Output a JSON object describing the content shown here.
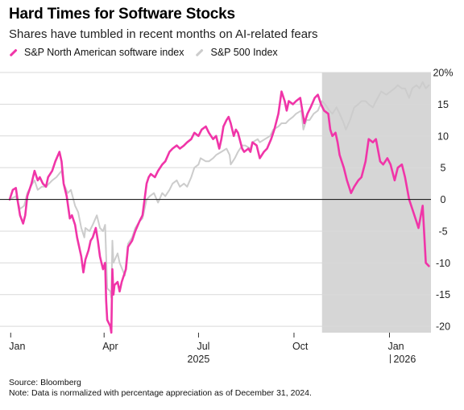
{
  "title": "Hard Times for Software Stocks",
  "subtitle": "Shares have tumbled in recent months on AI-related fears",
  "source": "Source: Bloomberg",
  "note": "Note: Data is normalized with percentage appreciation as of December 31, 2024.",
  "chart_data": {
    "type": "line",
    "title": "Hard Times for Software Stocks",
    "subtitle": "Shares have tumbled in recent months on AI-related fears",
    "x_type": "date",
    "xlim": [
      "2024-12-31",
      "2026-02-10"
    ],
    "ylim": [
      -21,
      20
    ],
    "y_ticks": [
      -20,
      -15,
      -10,
      -5,
      0,
      5,
      10,
      15,
      20
    ],
    "y_tick_labels": [
      "-20",
      "-15",
      "-10",
      "-5",
      "0",
      "5",
      "10",
      "15",
      "20%"
    ],
    "y_axis_position": "right",
    "x_ticks": [
      "2025-01-01",
      "2025-04-01",
      "2025-07-01",
      "2025-10-01",
      "2026-01-01"
    ],
    "x_tick_labels": [
      "Jan",
      "Apr",
      "Jul",
      "Oct",
      "Jan"
    ],
    "x_year_labels": [
      {
        "date": "2025-07-01",
        "label": "2025"
      },
      {
        "date": "2026-01-01",
        "label": "2026"
      }
    ],
    "grid": "horizontal",
    "legend_position": "top-left",
    "shaded_region": {
      "from": "2025-10-28",
      "to": "2026-02-10",
      "color": "#d6d6d6"
    },
    "colors": {
      "software": "#f035a8",
      "sp500": "#cccccc",
      "zero_line": "#222222",
      "grid": "#d9d9d9"
    },
    "series": [
      {
        "name": "S&P North American software index",
        "color": "#f035a8",
        "points": [
          [
            "2024-12-31",
            0
          ],
          [
            "2025-01-03",
            1.5
          ],
          [
            "2025-01-06",
            1.8
          ],
          [
            "2025-01-08",
            -0.5
          ],
          [
            "2025-01-10",
            -2.5
          ],
          [
            "2025-01-13",
            -3.8
          ],
          [
            "2025-01-15",
            -2.5
          ],
          [
            "2025-01-17",
            0.5
          ],
          [
            "2025-01-21",
            2.5
          ],
          [
            "2025-01-24",
            4.5
          ],
          [
            "2025-01-27",
            3.0
          ],
          [
            "2025-01-29",
            3.5
          ],
          [
            "2025-02-01",
            2.5
          ],
          [
            "2025-02-04",
            2.0
          ],
          [
            "2025-02-06",
            3.5
          ],
          [
            "2025-02-10",
            4.5
          ],
          [
            "2025-02-13",
            6.0
          ],
          [
            "2025-02-17",
            7.5
          ],
          [
            "2025-02-19",
            6.0
          ],
          [
            "2025-02-21",
            2.5
          ],
          [
            "2025-02-24",
            0.5
          ],
          [
            "2025-02-27",
            -3.0
          ],
          [
            "2025-03-01",
            -2.5
          ],
          [
            "2025-03-04",
            -4.0
          ],
          [
            "2025-03-06",
            -6.0
          ],
          [
            "2025-03-10",
            -9.0
          ],
          [
            "2025-03-12",
            -11.5
          ],
          [
            "2025-03-14",
            -9.5
          ],
          [
            "2025-03-17",
            -8.0
          ],
          [
            "2025-03-19",
            -6.5
          ],
          [
            "2025-03-21",
            -6.0
          ],
          [
            "2025-03-24",
            -4.5
          ],
          [
            "2025-03-26",
            -6.5
          ],
          [
            "2025-03-28",
            -9.0
          ],
          [
            "2025-03-31",
            -11.0
          ],
          [
            "2025-04-02",
            -10.0
          ],
          [
            "2025-04-03",
            -16.0
          ],
          [
            "2025-04-04",
            -19.0
          ],
          [
            "2025-04-07",
            -20.0
          ],
          [
            "2025-04-08",
            -21.0
          ],
          [
            "2025-04-09",
            -11.0
          ],
          [
            "2025-04-10",
            -15.0
          ],
          [
            "2025-04-11",
            -13.5
          ],
          [
            "2025-04-14",
            -13.0
          ],
          [
            "2025-04-16",
            -14.5
          ],
          [
            "2025-04-18",
            -13.0
          ],
          [
            "2025-04-22",
            -11.0
          ],
          [
            "2025-04-24",
            -7.5
          ],
          [
            "2025-04-28",
            -6.5
          ],
          [
            "2025-05-01",
            -5.0
          ],
          [
            "2025-05-05",
            -3.5
          ],
          [
            "2025-05-08",
            -2.5
          ],
          [
            "2025-05-12",
            2.5
          ],
          [
            "2025-05-14",
            3.5
          ],
          [
            "2025-05-16",
            4.0
          ],
          [
            "2025-05-20",
            3.5
          ],
          [
            "2025-05-23",
            4.5
          ],
          [
            "2025-05-27",
            5.5
          ],
          [
            "2025-05-30",
            6.0
          ],
          [
            "2025-06-03",
            7.5
          ],
          [
            "2025-06-06",
            8.0
          ],
          [
            "2025-06-10",
            8.5
          ],
          [
            "2025-06-13",
            8.0
          ],
          [
            "2025-06-17",
            8.5
          ],
          [
            "2025-06-20",
            9.0
          ],
          [
            "2025-06-24",
            9.5
          ],
          [
            "2025-06-27",
            10.5
          ],
          [
            "2025-07-01",
            10.0
          ],
          [
            "2025-07-04",
            11.0
          ],
          [
            "2025-07-08",
            11.5
          ],
          [
            "2025-07-11",
            10.5
          ],
          [
            "2025-07-15",
            9.5
          ],
          [
            "2025-07-18",
            10.0
          ],
          [
            "2025-07-21",
            8.0
          ],
          [
            "2025-07-23",
            9.5
          ],
          [
            "2025-07-25",
            11.5
          ],
          [
            "2025-07-28",
            12.5
          ],
          [
            "2025-07-30",
            13.0
          ],
          [
            "2025-08-01",
            12.0
          ],
          [
            "2025-08-04",
            10.0
          ],
          [
            "2025-08-06",
            11.0
          ],
          [
            "2025-08-08",
            10.5
          ],
          [
            "2025-08-12",
            8.0
          ],
          [
            "2025-08-14",
            7.5
          ],
          [
            "2025-08-18",
            8.0
          ],
          [
            "2025-08-20",
            7.5
          ],
          [
            "2025-08-22",
            9.0
          ],
          [
            "2025-08-26",
            8.5
          ],
          [
            "2025-08-29",
            6.5
          ],
          [
            "2025-09-02",
            7.5
          ],
          [
            "2025-09-05",
            8.0
          ],
          [
            "2025-09-09",
            9.5
          ],
          [
            "2025-09-12",
            11.0
          ],
          [
            "2025-09-16",
            13.5
          ],
          [
            "2025-09-19",
            17.0
          ],
          [
            "2025-09-22",
            15.5
          ],
          [
            "2025-09-24",
            14.0
          ],
          [
            "2025-09-26",
            15.5
          ],
          [
            "2025-09-30",
            15.0
          ],
          [
            "2025-10-03",
            15.5
          ],
          [
            "2025-10-07",
            16.0
          ],
          [
            "2025-10-09",
            14.0
          ],
          [
            "2025-10-11",
            12.0
          ],
          [
            "2025-10-14",
            13.5
          ],
          [
            "2025-10-17",
            14.5
          ],
          [
            "2025-10-21",
            16.0
          ],
          [
            "2025-10-24",
            16.5
          ],
          [
            "2025-10-27",
            15.0
          ],
          [
            "2025-10-30",
            14.0
          ],
          [
            "2025-11-03",
            13.5
          ],
          [
            "2025-11-05",
            11.0
          ],
          [
            "2025-11-07",
            10.0
          ],
          [
            "2025-11-10",
            10.5
          ],
          [
            "2025-11-12",
            9.0
          ],
          [
            "2025-11-14",
            7.0
          ],
          [
            "2025-11-18",
            5.0
          ],
          [
            "2025-11-21",
            3.0
          ],
          [
            "2025-11-25",
            1.0
          ],
          [
            "2025-11-28",
            2.0
          ],
          [
            "2025-12-02",
            3.0
          ],
          [
            "2025-12-05",
            3.5
          ],
          [
            "2025-12-09",
            6.0
          ],
          [
            "2025-12-12",
            9.5
          ],
          [
            "2025-12-16",
            9.0
          ],
          [
            "2025-12-19",
            9.5
          ],
          [
            "2025-12-23",
            6.0
          ],
          [
            "2025-12-26",
            5.5
          ],
          [
            "2025-12-30",
            6.5
          ],
          [
            "2026-01-02",
            5.5
          ],
          [
            "2026-01-06",
            3.0
          ],
          [
            "2026-01-09",
            5.0
          ],
          [
            "2026-01-13",
            5.5
          ],
          [
            "2026-01-16",
            3.5
          ],
          [
            "2026-01-20",
            0.0
          ],
          [
            "2026-01-23",
            -1.5
          ],
          [
            "2026-01-27",
            -3.5
          ],
          [
            "2026-01-29",
            -4.5
          ],
          [
            "2026-02-02",
            -1.0
          ],
          [
            "2026-02-05",
            -10.0
          ],
          [
            "2026-02-08",
            -10.5
          ]
        ]
      },
      {
        "name": "S&P 500 Index",
        "color": "#cccccc",
        "points": [
          [
            "2024-12-31",
            0
          ],
          [
            "2025-01-06",
            0.5
          ],
          [
            "2025-01-10",
            -1.5
          ],
          [
            "2025-01-14",
            -1.0
          ],
          [
            "2025-01-17",
            1.0
          ],
          [
            "2025-01-22",
            2.5
          ],
          [
            "2025-01-24",
            3.0
          ],
          [
            "2025-01-27",
            1.5
          ],
          [
            "2025-01-31",
            2.0
          ],
          [
            "2025-02-04",
            2.0
          ],
          [
            "2025-02-10",
            3.0
          ],
          [
            "2025-02-14",
            3.5
          ],
          [
            "2025-02-19",
            4.5
          ],
          [
            "2025-02-21",
            2.5
          ],
          [
            "2025-02-25",
            1.0
          ],
          [
            "2025-02-28",
            1.5
          ],
          [
            "2025-03-04",
            -1.0
          ],
          [
            "2025-03-07",
            -2.0
          ],
          [
            "2025-03-10",
            -4.5
          ],
          [
            "2025-03-13",
            -6.0
          ],
          [
            "2025-03-14",
            -4.5
          ],
          [
            "2025-03-18",
            -5.0
          ],
          [
            "2025-03-21",
            -4.0
          ],
          [
            "2025-03-25",
            -2.5
          ],
          [
            "2025-03-28",
            -4.5
          ],
          [
            "2025-03-31",
            -5.0
          ],
          [
            "2025-04-02",
            -4.0
          ],
          [
            "2025-04-03",
            -9.0
          ],
          [
            "2025-04-04",
            -14.0
          ],
          [
            "2025-04-07",
            -14.5
          ],
          [
            "2025-04-08",
            -15.5
          ],
          [
            "2025-04-09",
            -6.5
          ],
          [
            "2025-04-10",
            -10.0
          ],
          [
            "2025-04-14",
            -8.5
          ],
          [
            "2025-04-16",
            -10.0
          ],
          [
            "2025-04-21",
            -12.0
          ],
          [
            "2025-04-24",
            -7.0
          ],
          [
            "2025-04-28",
            -6.0
          ],
          [
            "2025-05-01",
            -4.5
          ],
          [
            "2025-05-05",
            -3.5
          ],
          [
            "2025-05-08",
            -3.0
          ],
          [
            "2025-05-12",
            0.0
          ],
          [
            "2025-05-15",
            0.5
          ],
          [
            "2025-05-19",
            1.0
          ],
          [
            "2025-05-23",
            -0.5
          ],
          [
            "2025-05-27",
            1.0
          ],
          [
            "2025-05-30",
            0.5
          ],
          [
            "2025-06-03",
            1.5
          ],
          [
            "2025-06-06",
            2.5
          ],
          [
            "2025-06-10",
            3.0
          ],
          [
            "2025-06-13",
            2.0
          ],
          [
            "2025-06-17",
            2.5
          ],
          [
            "2025-06-20",
            2.0
          ],
          [
            "2025-06-24",
            3.5
          ],
          [
            "2025-06-27",
            5.0
          ],
          [
            "2025-07-01",
            5.5
          ],
          [
            "2025-07-03",
            6.5
          ],
          [
            "2025-07-08",
            6.0
          ],
          [
            "2025-07-11",
            6.0
          ],
          [
            "2025-07-15",
            6.5
          ],
          [
            "2025-07-18",
            7.0
          ],
          [
            "2025-07-23",
            7.5
          ],
          [
            "2025-07-28",
            8.0
          ],
          [
            "2025-07-31",
            7.0
          ],
          [
            "2025-08-01",
            5.5
          ],
          [
            "2025-08-05",
            6.5
          ],
          [
            "2025-08-08",
            7.5
          ],
          [
            "2025-08-12",
            8.5
          ],
          [
            "2025-08-15",
            8.5
          ],
          [
            "2025-08-20",
            8.0
          ],
          [
            "2025-08-22",
            9.0
          ],
          [
            "2025-08-27",
            9.5
          ],
          [
            "2025-08-29",
            9.0
          ],
          [
            "2025-09-03",
            9.5
          ],
          [
            "2025-09-08",
            10.0
          ],
          [
            "2025-09-11",
            11.0
          ],
          [
            "2025-09-16",
            11.5
          ],
          [
            "2025-09-19",
            12.0
          ],
          [
            "2025-09-23",
            12.0
          ],
          [
            "2025-09-26",
            12.5
          ],
          [
            "2025-09-30",
            13.0
          ],
          [
            "2025-10-03",
            13.5
          ],
          [
            "2025-10-08",
            14.0
          ],
          [
            "2025-10-10",
            11.0
          ],
          [
            "2025-10-13",
            12.5
          ],
          [
            "2025-10-16",
            12.5
          ],
          [
            "2025-10-20",
            13.5
          ],
          [
            "2025-10-24",
            14.0
          ],
          [
            "2025-10-28",
            15.5
          ],
          [
            "2025-10-31",
            15.0
          ],
          [
            "2025-11-04",
            14.0
          ],
          [
            "2025-11-07",
            13.5
          ],
          [
            "2025-11-11",
            14.5
          ],
          [
            "2025-11-14",
            13.5
          ],
          [
            "2025-11-18",
            12.0
          ],
          [
            "2025-11-20",
            11.0
          ],
          [
            "2025-11-24",
            12.5
          ],
          [
            "2025-11-28",
            14.5
          ],
          [
            "2025-12-02",
            15.0
          ],
          [
            "2025-12-05",
            15.5
          ],
          [
            "2025-12-09",
            15.5
          ],
          [
            "2025-12-12",
            15.0
          ],
          [
            "2025-12-16",
            14.5
          ],
          [
            "2025-12-19",
            15.5
          ],
          [
            "2025-12-24",
            17.0
          ],
          [
            "2025-12-29",
            16.5
          ],
          [
            "2026-01-02",
            17.0
          ],
          [
            "2026-01-06",
            17.5
          ],
          [
            "2026-01-09",
            18.0
          ],
          [
            "2026-01-13",
            17.5
          ],
          [
            "2026-01-16",
            17.5
          ],
          [
            "2026-01-20",
            16.0
          ],
          [
            "2026-01-23",
            17.5
          ],
          [
            "2026-01-27",
            18.0
          ],
          [
            "2026-01-30",
            17.5
          ],
          [
            "2026-02-02",
            18.5
          ],
          [
            "2026-02-05",
            17.5
          ],
          [
            "2026-02-08",
            18.0
          ]
        ]
      }
    ]
  }
}
